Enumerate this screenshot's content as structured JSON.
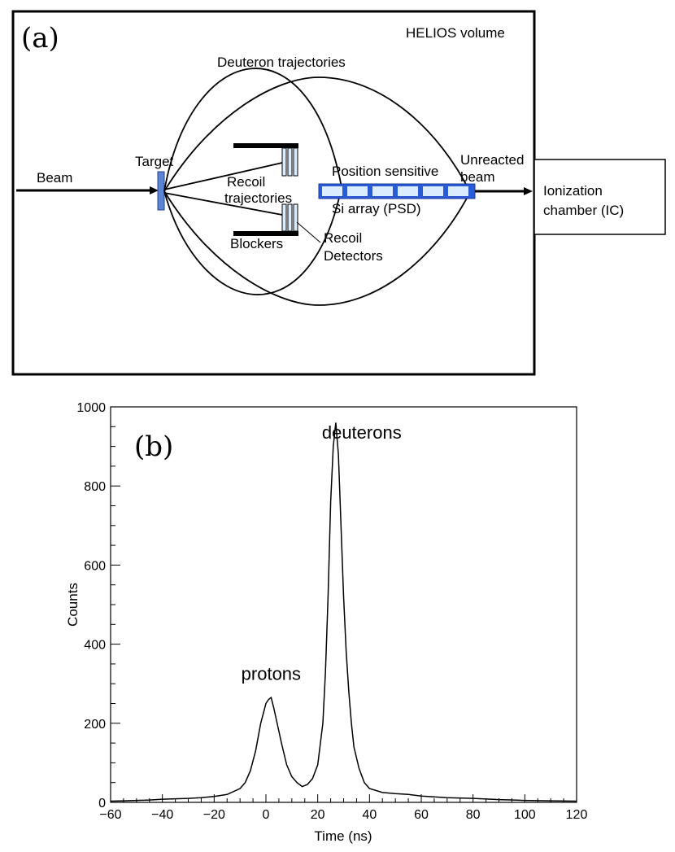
{
  "diagram": {
    "panel_label": "(a)",
    "volume_label": "HELIOS volume",
    "beam_label": "Beam",
    "target_label": "Target",
    "deuteron_traj_label": "Deuteron trajectories",
    "recoil_traj_line1": "Recoil",
    "recoil_traj_line2": "trajectories",
    "blockers_label": "Blockers",
    "recoil_det_line1": "Recoil",
    "recoil_det_line2": "Detectors",
    "psd_line1": "Position sensitive",
    "psd_line2": "Si array (PSD)",
    "unreacted_line1": "Unreacted",
    "unreacted_line2": "beam",
    "ic_line1": "Ionization",
    "ic_line2": "chamber (IC)",
    "colors": {
      "detector_fill": "#dcecff",
      "detector_stroke": "#2a5bd7",
      "target_fill": "#5b86d6"
    }
  },
  "chart_data": {
    "type": "histogram",
    "panel_label": "(b)",
    "xlabel": "Time (ns)",
    "ylabel": "Counts",
    "xlim": [
      -60,
      120
    ],
    "ylim": [
      0,
      1000
    ],
    "xticks": [
      -60,
      -40,
      -20,
      0,
      20,
      40,
      60,
      80,
      100,
      120
    ],
    "yticks": [
      0,
      200,
      400,
      600,
      800,
      1000
    ],
    "annotations": [
      {
        "text": "protons",
        "x": 2,
        "y": 310
      },
      {
        "text": "deuterons",
        "x": 37,
        "y": 920
      }
    ],
    "x": [
      -60,
      -55,
      -50,
      -45,
      -40,
      -35,
      -30,
      -25,
      -20,
      -15,
      -10,
      -8,
      -6,
      -4,
      -2,
      0,
      1,
      2,
      3,
      4,
      6,
      8,
      10,
      12,
      14,
      16,
      18,
      20,
      22,
      23,
      24,
      25,
      26,
      27,
      28,
      29,
      30,
      31,
      32,
      33,
      34,
      36,
      38,
      40,
      45,
      50,
      55,
      60,
      65,
      70,
      80,
      90,
      100,
      110,
      120
    ],
    "values": [
      3,
      4,
      5,
      6,
      8,
      9,
      10,
      12,
      15,
      20,
      35,
      50,
      80,
      130,
      200,
      250,
      260,
      265,
      240,
      210,
      150,
      95,
      65,
      50,
      40,
      45,
      60,
      95,
      200,
      330,
      520,
      760,
      900,
      960,
      880,
      700,
      520,
      380,
      280,
      200,
      140,
      85,
      50,
      35,
      25,
      22,
      20,
      16,
      14,
      12,
      10,
      7,
      5,
      4,
      3
    ]
  }
}
